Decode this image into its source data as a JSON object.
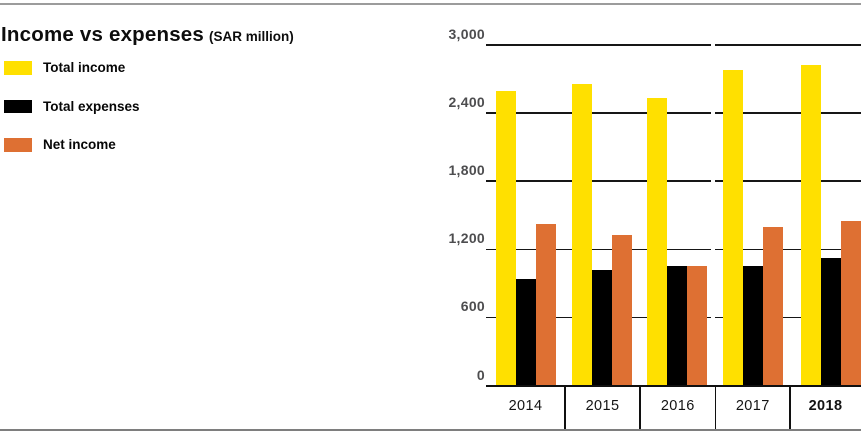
{
  "title": {
    "main": "Income vs expenses",
    "unit": "(SAR million)"
  },
  "legend": [
    {
      "label": "Total income",
      "color": "#FFE000"
    },
    {
      "label": "Total expenses",
      "color": "#000000"
    },
    {
      "label": "Net income",
      "color": "#DE7033"
    }
  ],
  "chart_data": {
    "type": "bar",
    "title": "Income vs expenses",
    "subtitle": "(SAR million)",
    "categories": [
      "2014",
      "2015",
      "2016",
      "2017",
      "2018"
    ],
    "series": [
      {
        "name": "Total income",
        "color": "#FFE000",
        "values": [
          2600,
          2665,
          2540,
          2780,
          2830
        ]
      },
      {
        "name": "Total expenses",
        "color": "#000000",
        "values": [
          940,
          1025,
          1055,
          1055,
          1125
        ]
      },
      {
        "name": "Net income",
        "color": "#DE7033",
        "values": [
          1430,
          1330,
          1055,
          1405,
          1450
        ]
      }
    ],
    "xlabel": "",
    "ylabel": "",
    "ylim": [
      0,
      3000
    ],
    "ytick_step": 600,
    "ytick_labels": [
      "3,000",
      "2,400",
      "1,800",
      "1,200",
      "600",
      "0"
    ],
    "grid": "horizontal",
    "gridline_gap_between": [
      "2016",
      "2017"
    ],
    "legend_position": "left",
    "highlighted_category": "2018"
  },
  "colors": {
    "grid": "#161616",
    "axis_label": "#4d4d4f",
    "top_rule": "#9c9c9c",
    "bottom_rule": "#7e7e7e"
  }
}
